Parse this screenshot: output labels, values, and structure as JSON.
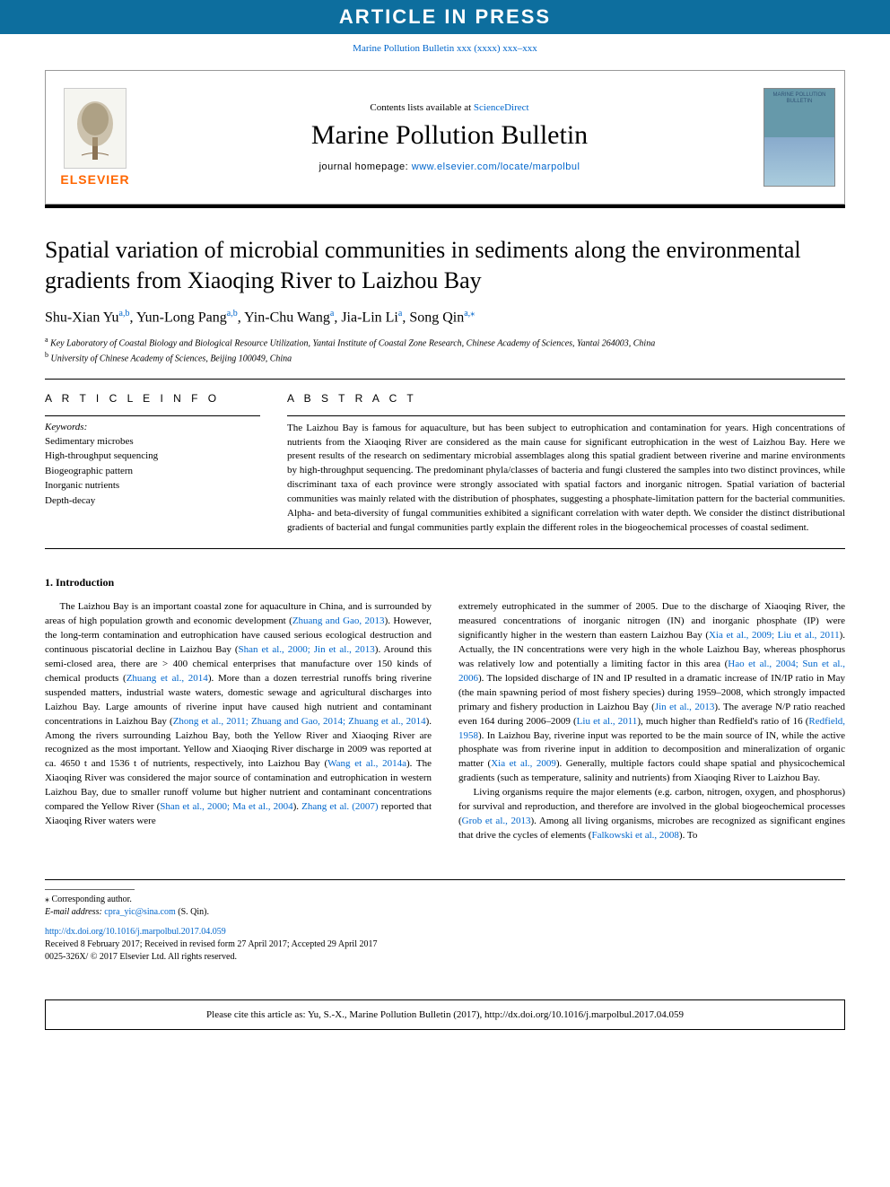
{
  "banner": {
    "text": "ARTICLE IN PRESS"
  },
  "journal_ref": {
    "text_prefix": "Marine Pollution Bulletin xxx (xxxx) xxx–xxx",
    "link": "Marine Pollution Bulletin xxx (xxxx) xxx–xxx"
  },
  "header": {
    "contents_prefix": "Contents lists available at ",
    "contents_link": "ScienceDirect",
    "journal_title": "Marine Pollution Bulletin",
    "homepage_prefix": "journal homepage: ",
    "homepage_link": "www.elsevier.com/locate/marpolbul",
    "elsevier": "ELSEVIER",
    "cover_text": "MARINE POLLUTION BULLETIN"
  },
  "article": {
    "title": "Spatial variation of microbial communities in sediments along the environmental gradients from Xiaoqing River to Laizhou Bay",
    "authors_html": "Shu-Xian Yu<sup class=\"sup\"><a>a,b</a></sup>, Yun-Long Pang<sup class=\"sup\"><a>a,b</a></sup>, Yin-Chu Wang<sup class=\"sup\"><a>a</a></sup>, Jia-Lin Li<sup class=\"sup\"><a>a</a></sup>, Song Qin<sup class=\"sup\"><a>a,</a></sup><sup class=\"sup\"><a>⁎</a></sup>",
    "affiliations": [
      {
        "label": "a",
        "text": "Key Laboratory of Coastal Biology and Biological Resource Utilization, Yantai Institute of Coastal Zone Research, Chinese Academy of Sciences, Yantai 264003, China"
      },
      {
        "label": "b",
        "text": "University of Chinese Academy of Sciences, Beijing 100049, China"
      }
    ]
  },
  "info": {
    "heading": "A R T I C L E  I N F O",
    "keywords_label": "Keywords:",
    "keywords": [
      "Sedimentary microbes",
      "High-throughput sequencing",
      "Biogeographic pattern",
      "Inorganic nutrients",
      "Depth-decay"
    ]
  },
  "abstract": {
    "heading": "A B S T R A C T",
    "text": "The Laizhou Bay is famous for aquaculture, but has been subject to eutrophication and contamination for years. High concentrations of nutrients from the Xiaoqing River are considered as the main cause for significant eutrophication in the west of Laizhou Bay. Here we present results of the research on sedimentary microbial assemblages along this spatial gradient between riverine and marine environments by high-throughput sequencing. The predominant phyla/classes of bacteria and fungi clustered the samples into two distinct provinces, while discriminant taxa of each province were strongly associated with spatial factors and inorganic nitrogen. Spatial variation of bacterial communities was mainly related with the distribution of phosphates, suggesting a phosphate-limitation pattern for the bacterial communities. Alpha- and beta-diversity of fungal communities exhibited a significant correlation with water depth. We consider the distinct distributional gradients of bacterial and fungal communities partly explain the different roles in the biogeochemical processes of coastal sediment."
  },
  "body": {
    "heading": "1. Introduction",
    "p1_html": "The Laizhou Bay is an important coastal zone for aquaculture in China, and is surrounded by areas of high population growth and economic development (<span class=\"cite\">Zhuang and Gao, 2013</span>). However, the long-term contamination and eutrophication have caused serious ecological destruction and continuous piscatorial decline in Laizhou Bay (<span class=\"cite\">Shan et al., 2000; Jin et al., 2013</span>). Around this semi-closed area, there are &gt; 400 chemical enterprises that manufacture over 150 kinds of chemical products (<span class=\"cite\">Zhuang et al., 2014</span>). More than a dozen terrestrial runoffs bring riverine suspended matters, industrial waste waters, domestic sewage and agricultural discharges into Laizhou Bay. Large amounts of riverine input have caused high nutrient and contaminant concentrations in Laizhou Bay (<span class=\"cite\">Zhong et al., 2011; Zhuang and Gao, 2014; Zhuang et al., 2014</span>). Among the rivers surrounding Laizhou Bay, both the Yellow River and Xiaoqing River are recognized as the most important. Yellow and Xiaoqing River discharge in 2009 was reported at ca. 4650 t and 1536 t of nutrients, respectively, into Laizhou Bay (<span class=\"cite\">Wang et al., 2014a</span>). The Xiaoqing River was considered the major source of contamination and eutrophication in western Laizhou Bay, due to smaller runoff volume but higher nutrient and contaminant concentrations compared the Yellow River (<span class=\"cite\">Shan et al., 2000; Ma et al., 2004</span>). <span class=\"cite\">Zhang et al. (2007)</span> reported that Xiaoqing River waters were",
    "p2_html": "extremely eutrophicated in the summer of 2005. Due to the discharge of Xiaoqing River, the measured concentrations of inorganic nitrogen (IN) and inorganic phosphate (IP) were significantly higher in the western than eastern Laizhou Bay (<span class=\"cite\">Xia et al., 2009; Liu et al., 2011</span>). Actually, the IN concentrations were very high in the whole Laizhou Bay, whereas phosphorus was relatively low and potentially a limiting factor in this area (<span class=\"cite\">Hao et al., 2004; Sun et al., 2006</span>). The lopsided discharge of IN and IP resulted in a dramatic increase of IN/IP ratio in May (the main spawning period of most fishery species) during 1959–2008, which strongly impacted primary and fishery production in Laizhou Bay (<span class=\"cite\">Jin et al., 2013</span>). The average N/P ratio reached even 164 during 2006–2009 (<span class=\"cite\">Liu et al., 2011</span>), much higher than Redfield's ratio of 16 (<span class=\"cite\">Redfield, 1958</span>). In Laizhou Bay, riverine input was reported to be the main source of IN, while the active phosphate was from riverine input in addition to decomposition and mineralization of organic matter (<span class=\"cite\">Xia et al., 2009</span>). Generally, multiple factors could shape spatial and physicochemical gradients (such as temperature, salinity and nutrients) from Xiaoqing River to Laizhou Bay.",
    "p3_html": "Living organisms require the major elements (e.g. carbon, nitrogen, oxygen, and phosphorus) for survival and reproduction, and therefore are involved in the global biogeochemical processes (<span class=\"cite\">Grob et al., 2013</span>). Among all living organisms, microbes are recognized as significant engines that drive the cycles of elements (<span class=\"cite\">Falkowski et al., 2008</span>). To"
  },
  "footer": {
    "corr": "⁎ Corresponding author.",
    "email_label": "E-mail address: ",
    "email": "cpra_yic@sina.com",
    "email_suffix": " (S. Qin).",
    "doi": "http://dx.doi.org/10.1016/j.marpolbul.2017.04.059",
    "received": "Received 8 February 2017; Received in revised form 27 April 2017; Accepted 29 April 2017",
    "copyright": "0025-326X/ © 2017 Elsevier Ltd. All rights reserved."
  },
  "citation_box": {
    "text": "Please cite this article as: Yu, S.-X., Marine Pollution Bulletin (2017), http://dx.doi.org/10.1016/j.marpolbul.2017.04.059"
  },
  "colors": {
    "banner_bg": "#0d6e9e",
    "link": "#0066cc",
    "elsevier_orange": "#ff6600"
  }
}
